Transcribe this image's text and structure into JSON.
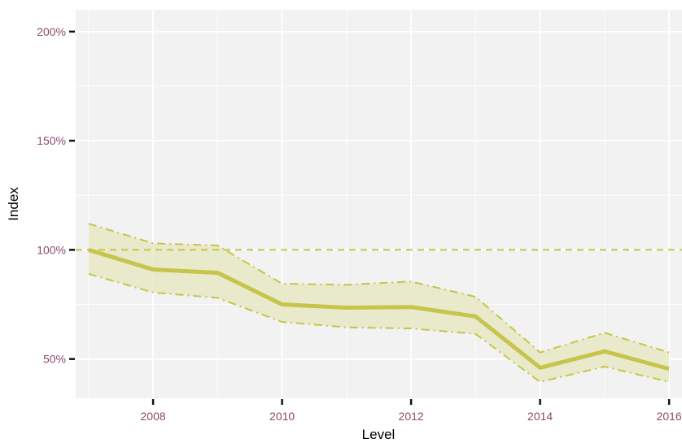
{
  "chart_data": {
    "type": "line",
    "title": "",
    "xlabel": "Level",
    "ylabel": "Index",
    "xlim": [
      2006.8,
      2016.2
    ],
    "ylim": [
      32,
      210
    ],
    "x_ticks": [
      2008,
      2010,
      2012,
      2014,
      2016
    ],
    "x_tick_labels": [
      "2008",
      "2010",
      "2012",
      "2014",
      "2016"
    ],
    "y_ticks": [
      50,
      100,
      150,
      200
    ],
    "y_tick_labels": [
      "50%",
      "100%",
      "150%",
      "200%"
    ],
    "reference_line": 100,
    "grid": true,
    "legend": "none",
    "x": [
      2007,
      2008,
      2009,
      2010,
      2011,
      2012,
      2013,
      2014,
      2015,
      2016
    ],
    "series": [
      {
        "role": "estimate",
        "values": [
          100,
          91,
          89.5,
          75,
          73.5,
          73.8,
          69.5,
          46,
          53.5,
          45.5
        ]
      },
      {
        "role": "upper",
        "values": [
          112,
          103,
          102,
          84.5,
          84,
          85.5,
          78.5,
          53,
          62,
          53
        ]
      },
      {
        "role": "lower",
        "values": [
          89,
          80.5,
          78,
          67,
          64.5,
          64,
          61.5,
          39.5,
          46.5,
          39.5
        ]
      }
    ],
    "colors": {
      "panel": "#f2f2f2",
      "grid": "#ffffff",
      "line": "#c6c44a",
      "ribbon": "#e8e8c4",
      "tick_label": "#8b4a6e"
    }
  }
}
